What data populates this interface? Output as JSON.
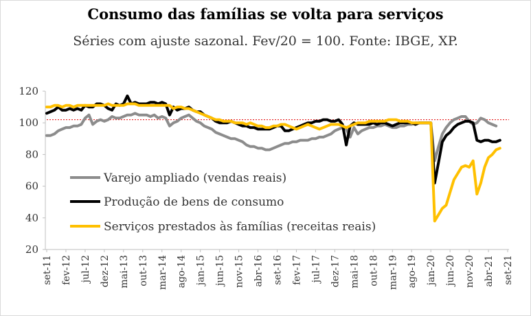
{
  "title": "Consumo das famílias se volta para serviços",
  "subtitle": "Séries com ajuste sazonal. Fev/20 = 100. Fonte: IBGE, XP.",
  "colors": {
    "varejo": "#8c8c8c",
    "producao": "#000000",
    "servicos": "#ffc000",
    "reference": "#e00000",
    "axis": "#bfbfbf"
  },
  "chart_data": {
    "type": "line",
    "ylim": [
      20,
      120
    ],
    "yticks": [
      20,
      40,
      60,
      80,
      100,
      120
    ],
    "x_start": "set-11",
    "x_end": "set-21",
    "x_tick_labels": [
      "set-11",
      "fev-12",
      "jul-12",
      "dez-12",
      "mai-13",
      "out-13",
      "mar-14",
      "ago-14",
      "jan-15",
      "jun-15",
      "nov-15",
      "abr-16",
      "set-16",
      "fev-17",
      "jul-17",
      "dez-17",
      "mai-18",
      "out-18",
      "mar-19",
      "ago-19",
      "jan-20",
      "jun-20",
      "nov-20",
      "abr-21",
      "set-21"
    ],
    "reference_line": {
      "value": 102,
      "style": "dotted"
    },
    "legend_position": "bottom-left",
    "series": [
      {
        "name": "Varejo ampliado (vendas reais)",
        "key": "varejo",
        "values": [
          92,
          92,
          93,
          95,
          96,
          97,
          97,
          98,
          98,
          99,
          103,
          105,
          99,
          101,
          102,
          101,
          102,
          104,
          103,
          103,
          104,
          105,
          105,
          106,
          105,
          105,
          105,
          104,
          105,
          103,
          104,
          103,
          98,
          100,
          101,
          103,
          104,
          105,
          103,
          101,
          100,
          98,
          97,
          96,
          94,
          93,
          92,
          91,
          90,
          90,
          89,
          88,
          86,
          85,
          85,
          84,
          84,
          83,
          83,
          84,
          85,
          86,
          87,
          87,
          88,
          88,
          89,
          89,
          89,
          90,
          90,
          91,
          91,
          92,
          93,
          95,
          96,
          97,
          96,
          91,
          97,
          93,
          95,
          96,
          97,
          97,
          98,
          98,
          99,
          98,
          97,
          97,
          98,
          98,
          99,
          99,
          100,
          100,
          100,
          100,
          100,
          76,
          85,
          93,
          97,
          100,
          102,
          103,
          104,
          104,
          101,
          99,
          100,
          103,
          102,
          100,
          99,
          98
        ]
      },
      {
        "name": "Produção de bens de consumo",
        "key": "producao",
        "values": [
          106,
          107,
          108,
          110,
          108,
          108,
          109,
          108,
          109,
          108,
          111,
          110,
          110,
          112,
          112,
          111,
          109,
          108,
          112,
          111,
          112,
          117,
          112,
          113,
          112,
          112,
          112,
          113,
          113,
          112,
          113,
          112,
          105,
          110,
          108,
          109,
          109,
          110,
          108,
          107,
          107,
          105,
          104,
          103,
          101,
          100,
          100,
          100,
          101,
          100,
          99,
          98,
          98,
          97,
          97,
          96,
          96,
          96,
          96,
          97,
          98,
          98,
          95,
          95,
          96,
          97,
          98,
          99,
          100,
          100,
          101,
          101,
          102,
          102,
          101,
          101,
          102,
          99,
          86,
          98,
          100,
          99,
          99,
          99,
          99,
          100,
          99,
          100,
          100,
          99,
          98,
          99,
          100,
          100,
          100,
          100,
          99,
          100,
          100,
          100,
          100,
          62,
          75,
          88,
          92,
          94,
          97,
          99,
          100,
          101,
          101,
          100,
          89,
          88,
          89,
          89,
          88,
          88,
          89
        ]
      },
      {
        "name": "Serviços prestados às famílias (receitas reais)",
        "key": "servicos",
        "values": [
          110,
          110,
          111,
          111,
          110,
          111,
          111,
          110,
          111,
          111,
          111,
          111,
          111,
          111,
          111,
          111,
          112,
          111,
          111,
          111,
          111,
          112,
          112,
          112,
          111,
          111,
          111,
          111,
          111,
          111,
          111,
          111,
          111,
          109,
          110,
          110,
          109,
          109,
          108,
          107,
          106,
          105,
          104,
          103,
          102,
          102,
          101,
          101,
          101,
          100,
          100,
          100,
          99,
          100,
          99,
          98,
          98,
          97,
          97,
          98,
          98,
          99,
          99,
          98,
          97,
          96,
          97,
          98,
          99,
          98,
          97,
          96,
          97,
          98,
          99,
          99,
          99,
          98,
          97,
          98,
          99,
          100,
          100,
          100,
          101,
          101,
          101,
          101,
          101,
          102,
          102,
          102,
          101,
          101,
          101,
          100,
          100,
          100,
          100,
          100,
          100,
          38,
          42,
          46,
          48,
          56,
          64,
          68,
          72,
          73,
          72,
          76,
          55,
          62,
          72,
          78,
          80,
          83,
          84
        ]
      }
    ]
  }
}
